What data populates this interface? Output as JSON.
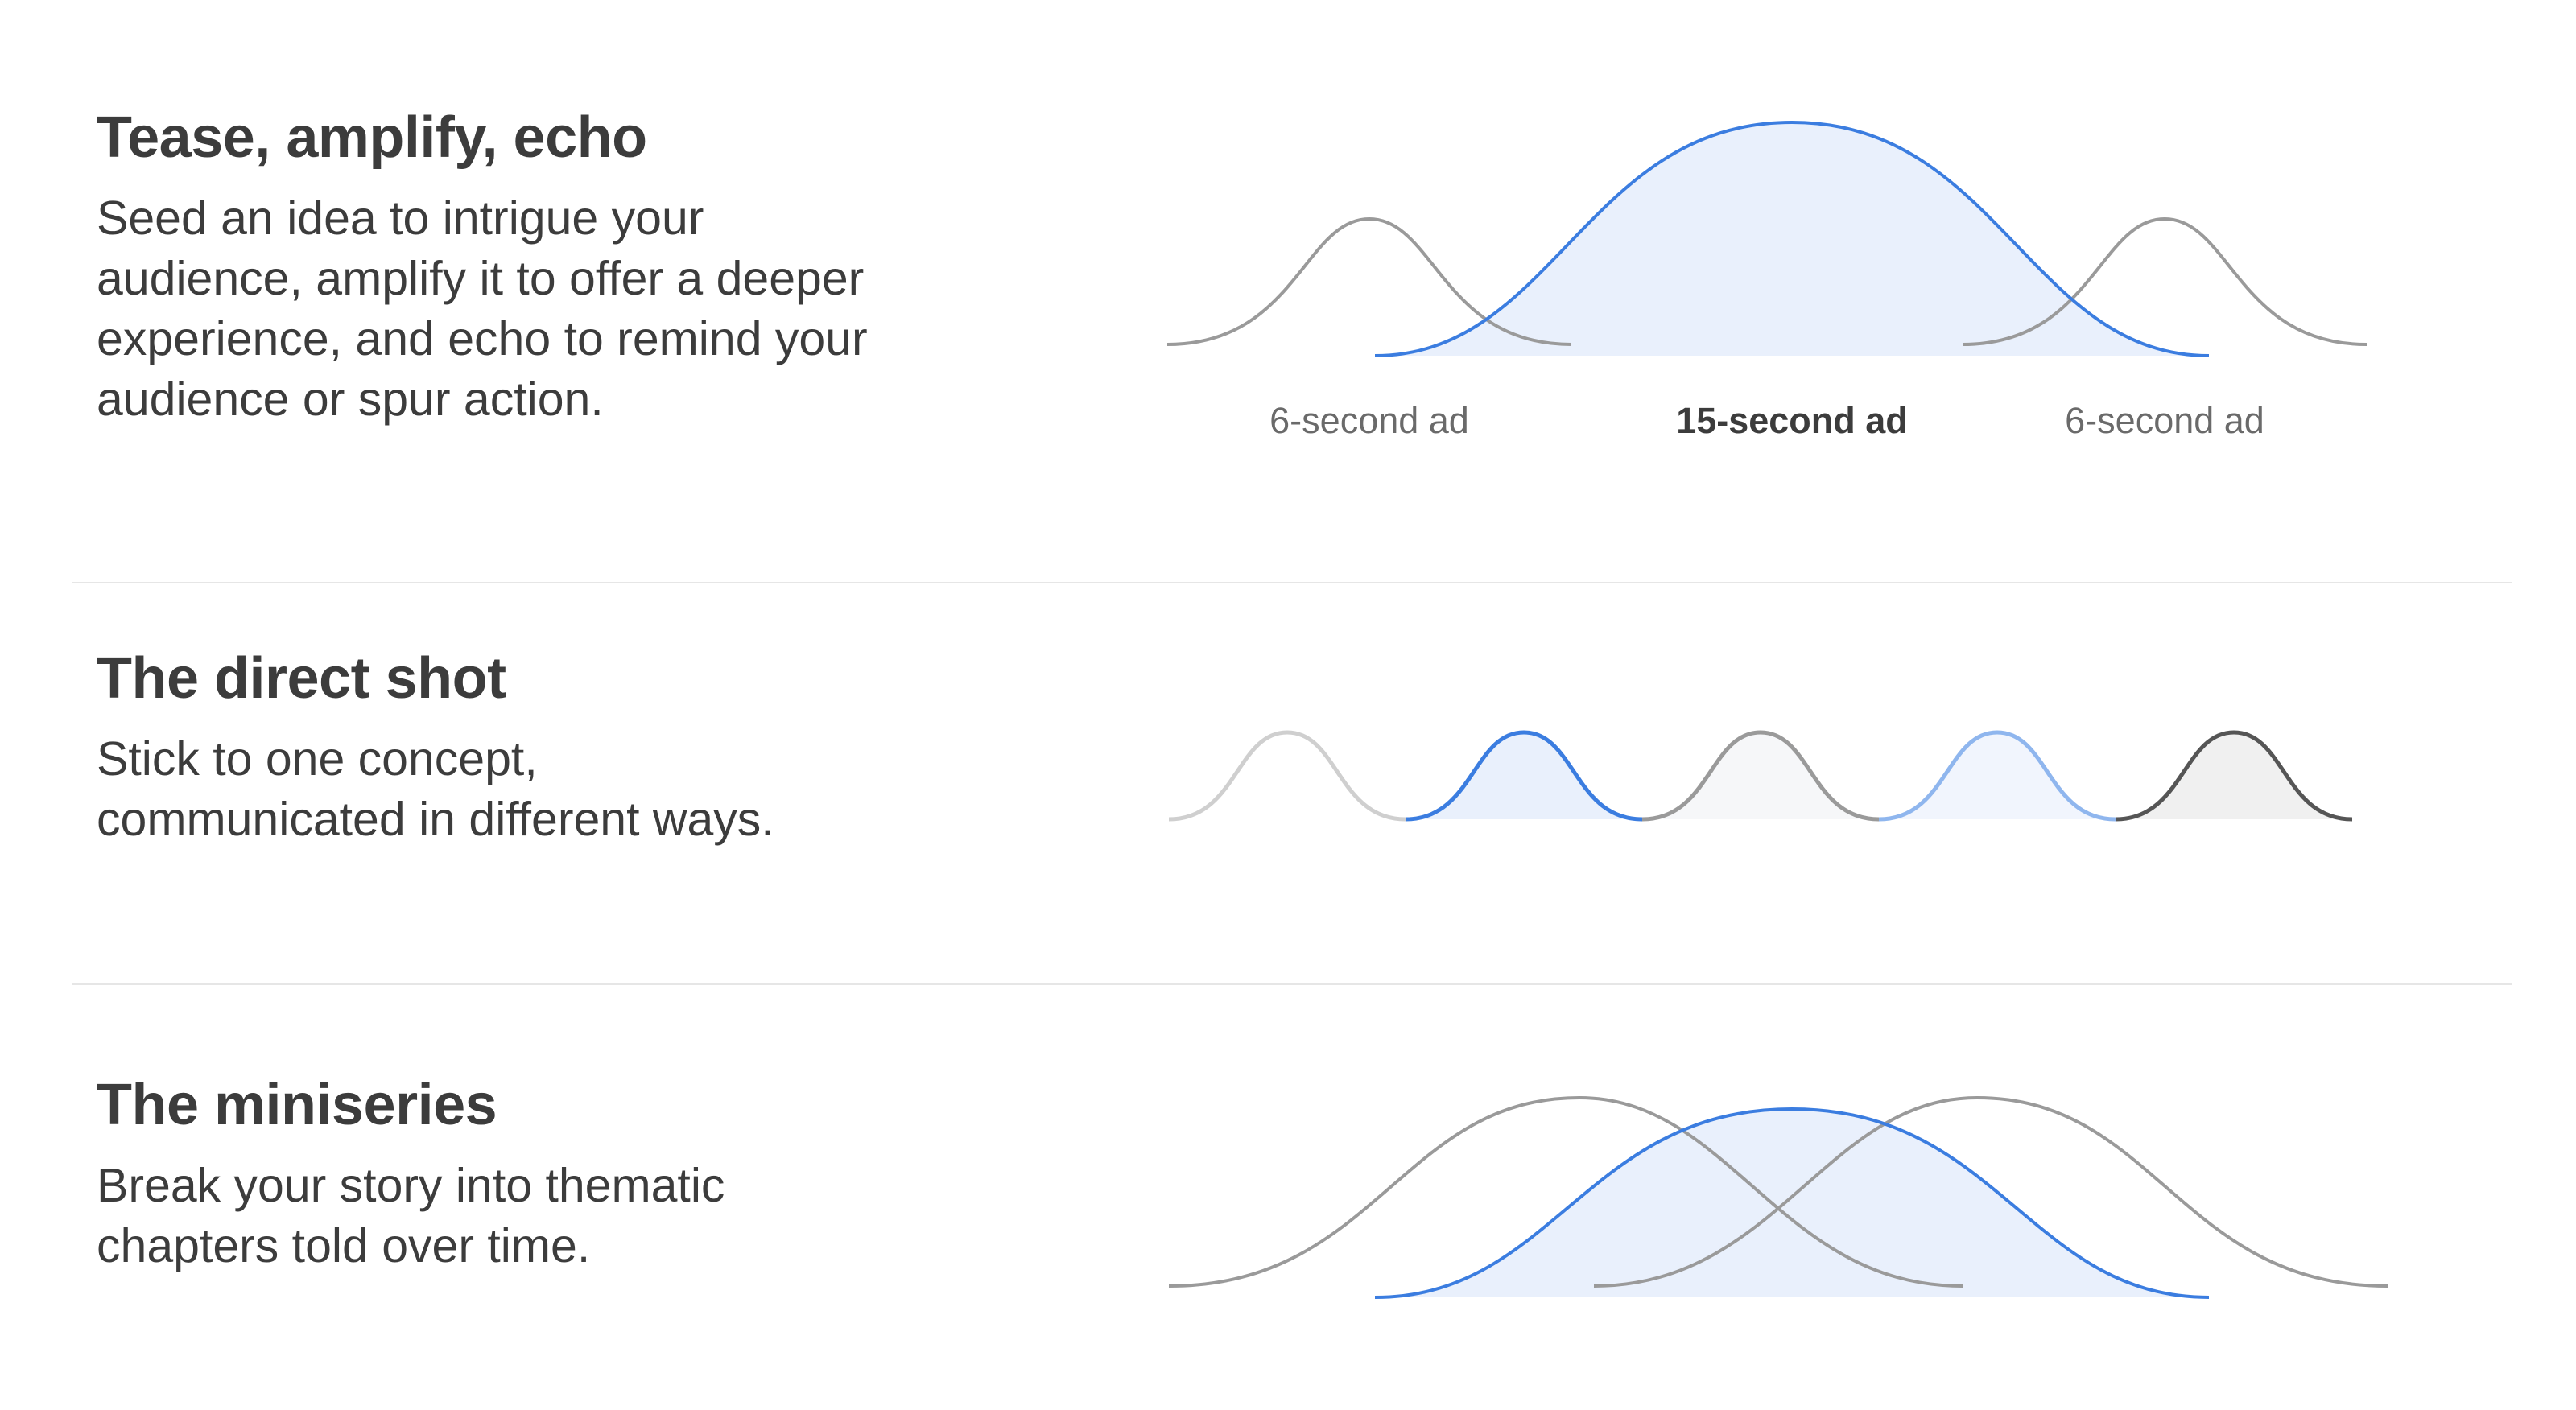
{
  "sections": [
    {
      "title": "Tease, amplify, echo",
      "description": "Seed an idea to intrigue your\naudience, amplify it to offer a deeper\nexperience, and echo to remind your\naudience or spur action.",
      "curve_labels": [
        "6-second ad",
        "15-second ad",
        "6-second ad"
      ]
    },
    {
      "title": "The direct shot",
      "description": "Stick to one concept,\ncommunicated in different ways."
    },
    {
      "title": "The miniseries",
      "description": "Break your story into thematic\nchapters told over time."
    }
  ],
  "colors": {
    "accent_blue": "#3b7de0",
    "light_blue": "#8fb6ee",
    "blue_fill": "#e9f0fc",
    "gray": "#9a9a9a",
    "light_gray": "#cfcfcf",
    "dark_gray": "#555555",
    "text": "#3c3c3c",
    "divider": "#e6e6e6"
  }
}
